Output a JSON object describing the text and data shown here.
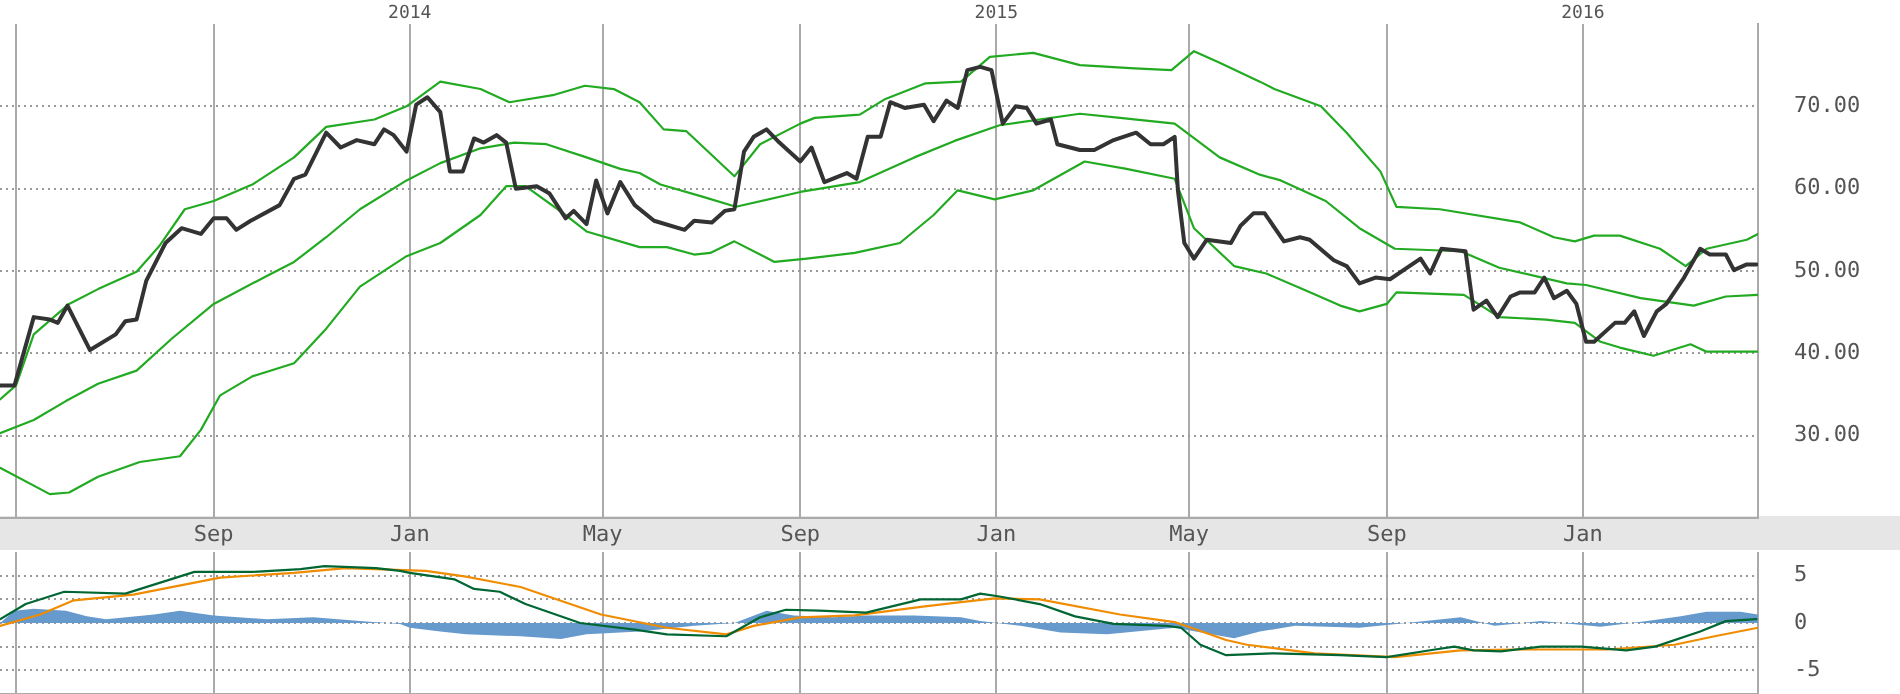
{
  "chart_data": [
    {
      "type": "line",
      "xlim": [
        "2013-04-21",
        "2016-04-19"
      ],
      "x2lim": [
        "2013-04-21",
        "2016-04-19"
      ],
      "ylim": [
        20,
        80
      ],
      "grid": true,
      "xticks": [
        {
          "value": "2013-05",
          "label": null
        },
        {
          "value": "2013-09",
          "label": "Sep"
        },
        {
          "value": "2014-01",
          "label": "Jan"
        },
        {
          "value": "2014-05",
          "label": "May"
        },
        {
          "value": "2014-09",
          "label": "Sep"
        },
        {
          "value": "2015-01",
          "label": "Jan"
        },
        {
          "value": "2015-05",
          "label": "May"
        },
        {
          "value": "2015-09",
          "label": "Sep"
        },
        {
          "value": "2016-01",
          "label": "Jan"
        }
      ],
      "x2ticks": [
        {
          "value": "2014",
          "label": "2014"
        },
        {
          "value": "2015",
          "label": "2015"
        },
        {
          "value": "2016",
          "label": "2016"
        }
      ],
      "yticks": [
        {
          "value": 30,
          "label": "30.00"
        },
        {
          "value": 40,
          "label": "40.00"
        },
        {
          "value": 50,
          "label": "50.00"
        },
        {
          "value": 60,
          "label": "60.00"
        },
        {
          "value": 70,
          "label": "70.00"
        }
      ],
      "series": [
        {
          "color": "#333333",
          "x": [
            "2013-04-21",
            "2013-04-30",
            "2013-05-12",
            "2013-05-22",
            "2013-05-27",
            "2013-06-02",
            "2013-06-16",
            "2013-07-02",
            "2013-07-08",
            "2013-07-15",
            "2013-07-21",
            "2013-08-02",
            "2013-08-12",
            "2013-08-24",
            "2013-09-01",
            "2013-09-09",
            "2013-09-15",
            "2013-09-24",
            "2013-10-12",
            "2013-10-21",
            "2013-10-28",
            "2013-11-10",
            "2013-11-19",
            "2013-11-29",
            "2013-12-10",
            "2013-12-16",
            "2013-12-22",
            "2013-12-30",
            "2014-01-05",
            "2014-01-12",
            "2014-01-20",
            "2014-01-26",
            "2014-02-03",
            "2014-02-10",
            "2014-02-16",
            "2014-02-24",
            "2014-03-02",
            "2014-03-08",
            "2014-03-21",
            "2014-03-29",
            "2014-04-08",
            "2014-04-13",
            "2014-04-21",
            "2014-04-27",
            "2014-05-04",
            "2014-05-12",
            "2014-05-21",
            "2014-06-02",
            "2014-06-21",
            "2014-06-27",
            "2014-07-08",
            "2014-07-16",
            "2014-07-22",
            "2014-07-28",
            "2014-08-03",
            "2014-08-11",
            "2014-08-19",
            "2014-09-01",
            "2014-09-08",
            "2014-09-16",
            "2014-09-30",
            "2014-10-06",
            "2014-10-13",
            "2014-10-21",
            "2014-10-27",
            "2014-11-05",
            "2014-11-17",
            "2014-11-23",
            "2014-12-01",
            "2014-12-08",
            "2014-12-14",
            "2014-12-22",
            "2014-12-29",
            "2015-01-05",
            "2015-01-13",
            "2015-01-20",
            "2015-01-26",
            "2015-02-04",
            "2015-02-08",
            "2015-02-22",
            "2015-03-03",
            "2015-03-15",
            "2015-03-29",
            "2015-04-07",
            "2015-04-15",
            "2015-04-22",
            "2015-04-24",
            "2015-04-28",
            "2015-05-04",
            "2015-05-12",
            "2015-05-27",
            "2015-06-02",
            "2015-06-10",
            "2015-06-17",
            "2015-06-29",
            "2015-07-09",
            "2015-07-15",
            "2015-07-30",
            "2015-08-07",
            "2015-08-15",
            "2015-08-25",
            "2015-09-03",
            "2015-09-22",
            "2015-09-28",
            "2015-10-05",
            "2015-10-20",
            "2015-10-25",
            "2015-11-02",
            "2015-11-09",
            "2015-11-17",
            "2015-11-23",
            "2015-12-02",
            "2015-12-08",
            "2015-12-14",
            "2015-12-22",
            "2015-12-28",
            "2016-01-03",
            "2016-01-08",
            "2016-01-21",
            "2016-01-27",
            "2016-02-02",
            "2016-02-08",
            "2016-02-16",
            "2016-02-22",
            "2016-03-04",
            "2016-03-14",
            "2016-03-20",
            "2016-03-30",
            "2016-04-04",
            "2016-04-12",
            "2016-04-18"
          ],
          "values": [
            36.1,
            36.1,
            44.4,
            44.1,
            43.7,
            45.8,
            40.4,
            42.3,
            43.9,
            44.1,
            48.8,
            53.4,
            55.2,
            54.5,
            56.4,
            56.4,
            55,
            56.1,
            58,
            61.2,
            61.7,
            66.8,
            65,
            65.9,
            65.4,
            67.2,
            66.5,
            64.5,
            70.2,
            71.1,
            69.3,
            62.1,
            62.1,
            66.1,
            65.6,
            66.5,
            65.6,
            60,
            60.3,
            59.4,
            56.4,
            57.3,
            55.7,
            61,
            57,
            60.8,
            58,
            56.1,
            55,
            56.1,
            55.9,
            57.3,
            57.5,
            64.5,
            66.3,
            67.2,
            65.6,
            63.3,
            65,
            60.8,
            61.9,
            61.2,
            66.3,
            66.3,
            70.5,
            69.8,
            70.2,
            68.2,
            70.7,
            69.8,
            74.4,
            74.8,
            74.4,
            67.9,
            70,
            69.8,
            67.9,
            68.4,
            65.4,
            64.7,
            64.7,
            65.9,
            66.8,
            65.4,
            65.4,
            66.3,
            59.8,
            53.4,
            51.5,
            53.8,
            53.4,
            55.5,
            57,
            57,
            53.6,
            54.1,
            53.8,
            51.3,
            50.6,
            48.5,
            49.2,
            49,
            51.5,
            49.7,
            52.7,
            52.4,
            45.3,
            46.4,
            44.4,
            46.9,
            47.4,
            47.4,
            49.2,
            46.7,
            47.6,
            46,
            41.4,
            41.4,
            43.7,
            43.7,
            45.1,
            42.1,
            45.1,
            46,
            49.2,
            52.7,
            52,
            52,
            50.1,
            50.8,
            50.8
          ]
        },
        {
          "color": "#22aa22",
          "x": [
            "2013-04-21",
            "2013-05-01",
            "2013-05-12",
            "2013-06-03",
            "2013-06-21",
            "2013-07-15",
            "2013-07-29",
            "2013-08-14",
            "2013-09-01",
            "2013-09-25",
            "2013-10-21",
            "2013-11-10",
            "2013-12-10",
            "2013-12-30",
            "2014-01-20",
            "2014-02-14",
            "2014-03-04",
            "2014-04-01",
            "2014-04-20",
            "2014-05-08",
            "2014-05-24",
            "2014-06-08",
            "2014-06-22",
            "2014-07-22",
            "2014-08-07",
            "2014-09-01",
            "2014-09-10",
            "2014-10-08",
            "2014-10-24",
            "2014-11-18",
            "2014-12-10",
            "2014-12-28",
            "2015-01-24",
            "2015-02-22",
            "2015-03-28",
            "2015-04-20",
            "2015-05-04",
            "2015-05-20",
            "2015-06-14",
            "2015-06-23",
            "2015-07-22",
            "2015-08-07",
            "2015-08-28",
            "2015-09-07",
            "2015-10-04",
            "2015-11-23",
            "2015-12-14",
            "2015-12-27",
            "2016-01-08",
            "2016-01-24",
            "2016-02-18",
            "2016-03-05",
            "2016-03-18",
            "2016-04-12",
            "2016-04-19"
          ],
          "values": [
            34.4,
            36.1,
            42.3,
            46,
            47.8,
            49.9,
            53,
            57.5,
            58.5,
            60.5,
            63.8,
            67.5,
            68.4,
            70,
            73,
            72.1,
            70.5,
            71.4,
            72.5,
            72.1,
            70.5,
            67.2,
            67,
            61.5,
            65.4,
            67.9,
            68.6,
            69,
            70.9,
            72.8,
            73,
            76,
            76.5,
            75,
            74.6,
            74.4,
            76.7,
            75.3,
            73,
            72.1,
            70,
            66.8,
            62.1,
            57.8,
            57.5,
            55.9,
            54.1,
            53.6,
            54.3,
            54.3,
            52.7,
            50.6,
            52.7,
            53.8,
            54.5
          ]
        },
        {
          "color": "#22aa22",
          "x": [
            "2013-04-21",
            "2013-05-12",
            "2013-06-01",
            "2013-06-21",
            "2013-07-15",
            "2013-08-06",
            "2013-09-01",
            "2013-10-04",
            "2013-10-21",
            "2013-11-10",
            "2013-12-01",
            "2013-12-30",
            "2014-01-20",
            "2014-02-14",
            "2014-03-07",
            "2014-03-27",
            "2014-04-21",
            "2014-05-12",
            "2014-05-24",
            "2014-06-06",
            "2014-07-01",
            "2014-07-23",
            "2014-09-01",
            "2014-10-08",
            "2014-11-11",
            "2014-12-06",
            "2015-01-03",
            "2015-02-22",
            "2015-03-19",
            "2015-04-22",
            "2015-05-20",
            "2015-06-14",
            "2015-06-27",
            "2015-07-25",
            "2015-08-15",
            "2015-09-06",
            "2015-10-17",
            "2015-11-10",
            "2015-12-22",
            "2016-01-03",
            "2016-02-06",
            "2016-03-10",
            "2016-03-30",
            "2016-04-19"
          ],
          "values": [
            30.3,
            31.9,
            34.2,
            36.3,
            37.9,
            41.8,
            46,
            49.4,
            51.1,
            54.1,
            57.5,
            61,
            63.1,
            64.9,
            65.6,
            65.4,
            63.8,
            62.4,
            61.9,
            60.5,
            59.1,
            57.8,
            59.6,
            60.8,
            63.8,
            65.8,
            67.7,
            69.1,
            68.6,
            67.9,
            63.8,
            61.7,
            61,
            58.5,
            55.2,
            52.7,
            52.4,
            50.4,
            48.5,
            48.3,
            46.7,
            45.8,
            46.9,
            47.1
          ]
        },
        {
          "color": "#22aa22",
          "x": [
            "2013-04-21",
            "2013-05-22",
            "2013-06-03",
            "2013-06-21",
            "2013-07-17",
            "2013-08-11",
            "2013-08-24",
            "2013-09-05",
            "2013-09-25",
            "2013-10-21",
            "2013-11-10",
            "2013-12-01",
            "2013-12-30",
            "2014-01-20",
            "2014-02-14",
            "2014-03-02",
            "2014-03-14",
            "2014-04-08",
            "2014-04-21",
            "2014-05-24",
            "2014-06-10",
            "2014-06-27",
            "2014-07-07",
            "2014-07-22",
            "2014-08-16",
            "2014-09-05",
            "2014-10-05",
            "2014-11-02",
            "2014-11-23",
            "2014-12-08",
            "2014-12-31",
            "2015-01-24",
            "2015-02-25",
            "2015-03-23",
            "2015-04-22",
            "2015-05-04",
            "2015-05-29",
            "2015-06-18",
            "2015-07-13",
            "2015-08-03",
            "2015-08-15",
            "2015-09-01",
            "2015-09-07",
            "2015-10-19",
            "2015-11-10",
            "2015-12-09",
            "2015-12-27",
            "2016-01-12",
            "2016-01-24",
            "2016-02-14",
            "2016-03-08",
            "2016-03-18",
            "2016-04-19"
          ],
          "values": [
            26.1,
            22.9,
            23.1,
            25,
            26.8,
            27.5,
            30.7,
            34.9,
            37.2,
            38.8,
            43,
            48.1,
            51.8,
            53.4,
            56.8,
            60.3,
            60.3,
            56.8,
            54.8,
            52.9,
            52.9,
            52,
            52.2,
            53.6,
            51.1,
            51.5,
            52.2,
            53.4,
            56.8,
            59.8,
            58.7,
            59.8,
            63.3,
            62.4,
            61.2,
            55.2,
            50.6,
            49.7,
            47.6,
            45.8,
            45.1,
            46,
            47.4,
            47.1,
            44.4,
            44.1,
            43.7,
            41.4,
            40.7,
            39.7,
            41.1,
            40.2,
            40.2
          ]
        }
      ]
    },
    {
      "type": "line",
      "xlim": [
        "2013-04-21",
        "2016-04-19"
      ],
      "ylim": [
        -7.5,
        7.5
      ],
      "grid": true,
      "tick_labels": "y",
      "xticks": [
        {
          "value": "2013-05",
          "label": null
        },
        {
          "value": "2013-09",
          "label": null
        },
        {
          "value": "2014-01",
          "label": null
        },
        {
          "value": "2014-05",
          "label": null
        },
        {
          "value": "2014-09",
          "label": null
        },
        {
          "value": "2015-01",
          "label": null
        },
        {
          "value": "2015-05",
          "label": null
        },
        {
          "value": "2015-09",
          "label": null
        },
        {
          "value": "2016-01",
          "label": null
        }
      ],
      "yticks": [
        5,
        {
          "value": 2.5,
          "label": null
        },
        0,
        {
          "value": -2.5,
          "label": null
        },
        -5
      ],
      "series": [
        {
          "color": "#006633",
          "x": [
            "2013-04-21",
            "2013-05-07",
            "2013-05-31",
            "2013-07-08",
            "2013-08-20",
            "2013-09-25",
            "2013-10-25",
            "2013-11-09",
            "2013-12-11",
            "2013-12-26",
            "2014-01-01",
            "2014-01-29",
            "2014-02-10",
            "2014-02-26",
            "2014-03-14",
            "2014-04-17",
            "2014-05-21",
            "2014-06-10",
            "2014-07-17",
            "2014-08-07",
            "2014-08-23",
            "2014-09-13",
            "2014-10-12",
            "2014-11-15",
            "2014-12-10",
            "2014-12-22",
            "2015-01-03",
            "2015-01-28",
            "2015-02-19",
            "2015-03-15",
            "2015-04-17",
            "2015-04-26",
            "2015-05-08",
            "2015-05-24",
            "2015-06-23",
            "2015-08-03",
            "2015-09-01",
            "2015-10-01",
            "2015-10-13",
            "2015-10-25",
            "2015-11-11",
            "2015-12-06",
            "2015-12-31",
            "2016-01-28",
            "2016-02-15",
            "2016-03-14",
            "2016-03-30",
            "2016-04-18"
          ],
          "values": [
            0.4,
            2.0,
            3.3,
            3.1,
            5.4,
            5.4,
            5.7,
            6.0,
            5.8,
            5.5,
            5.3,
            4.6,
            3.6,
            3.3,
            2.0,
            0,
            -0.7,
            -1.2,
            -1.4,
            0.6,
            1.4,
            1.3,
            1.1,
            2.5,
            2.5,
            3.1,
            2.8,
            2.0,
            0.7,
            -0.1,
            -0.3,
            -0.5,
            -2.3,
            -3.4,
            -3.2,
            -3.4,
            -3.6,
            -2.8,
            -2.5,
            -2.9,
            -3.0,
            -2.5,
            -2.5,
            -2.9,
            -2.5,
            -0.9,
            0.2,
            0.4
          ]
        },
        {
          "color": "#f08c00",
          "x": [
            "2013-04-21",
            "2013-05-16",
            "2013-06-06",
            "2013-07-13",
            "2013-09-05",
            "2013-10-21",
            "2013-11-22",
            "2014-01-11",
            "2014-02-05",
            "2014-03-11",
            "2014-04-30",
            "2014-06-10",
            "2014-07-17",
            "2014-08-03",
            "2014-09-01",
            "2014-10-05",
            "2014-11-15",
            "2014-12-10",
            "2014-12-31",
            "2015-01-28",
            "2015-03-19",
            "2015-04-22",
            "2015-05-24",
            "2015-06-06",
            "2015-07-18",
            "2015-09-06",
            "2015-10-17",
            "2015-11-20",
            "2016-01-16",
            "2016-02-27",
            "2016-03-23",
            "2016-04-19"
          ],
          "values": [
            -0.3,
            0.9,
            2.4,
            3.0,
            4.8,
            5.3,
            5.8,
            5.5,
            4.9,
            3.8,
            0.9,
            -0.5,
            -1.2,
            -0.3,
            0.6,
            0.8,
            1.7,
            2.2,
            2.6,
            2.5,
            0.9,
            0.1,
            -1.8,
            -2.3,
            -3.2,
            -3.6,
            -2.9,
            -2.8,
            -2.8,
            -2.3,
            -1.4,
            -0.5
          ]
        },
        {
          "type": "area",
          "color": "#6699cc",
          "x": [
            "2013-04-21",
            "2013-04-30",
            "2013-05-12",
            "2013-06-01",
            "2013-06-14",
            "2013-06-26",
            "2013-07-26",
            "2013-08-11",
            "2013-09-01",
            "2013-10-04",
            "2013-11-02",
            "2013-12-01",
            "2013-12-26",
            "2014-01-01",
            "2014-01-20",
            "2014-02-05",
            "2014-03-11",
            "2014-04-05",
            "2014-04-21",
            "2014-05-24",
            "2014-06-27",
            "2014-07-22",
            "2014-08-11",
            "2014-08-28",
            "2014-09-22",
            "2014-10-12",
            "2014-11-11",
            "2014-12-10",
            "2014-12-22",
            "2015-01-16",
            "2015-02-10",
            "2015-03-11",
            "2015-04-22",
            "2015-05-12",
            "2015-05-29",
            "2015-06-14",
            "2015-07-06",
            "2015-08-15",
            "2015-09-13",
            "2015-10-17",
            "2015-11-07",
            "2015-12-06",
            "2016-01-12",
            "2016-02-10",
            "2016-03-02",
            "2016-03-18",
            "2016-04-08",
            "2016-04-19"
          ],
          "values": [
            0,
            1.3,
            1.5,
            1.3,
            0.7,
            0.4,
            0.9,
            1.3,
            0.8,
            0.4,
            0.6,
            0.2,
            -0.1,
            -0.5,
            -0.9,
            -1.2,
            -1.4,
            -1.7,
            -1.2,
            -0.9,
            -0.3,
            0,
            1.3,
            0.8,
            0.6,
            0.8,
            0.8,
            0.6,
            0.2,
            -0.3,
            -1.0,
            -1.2,
            -0.5,
            -1.1,
            -1.6,
            -0.9,
            -0.3,
            -0.5,
            0,
            0.6,
            -0.3,
            0.2,
            -0.4,
            0.2,
            0.7,
            1.2,
            1.2,
            0.9
          ]
        }
      ]
    }
  ]
}
